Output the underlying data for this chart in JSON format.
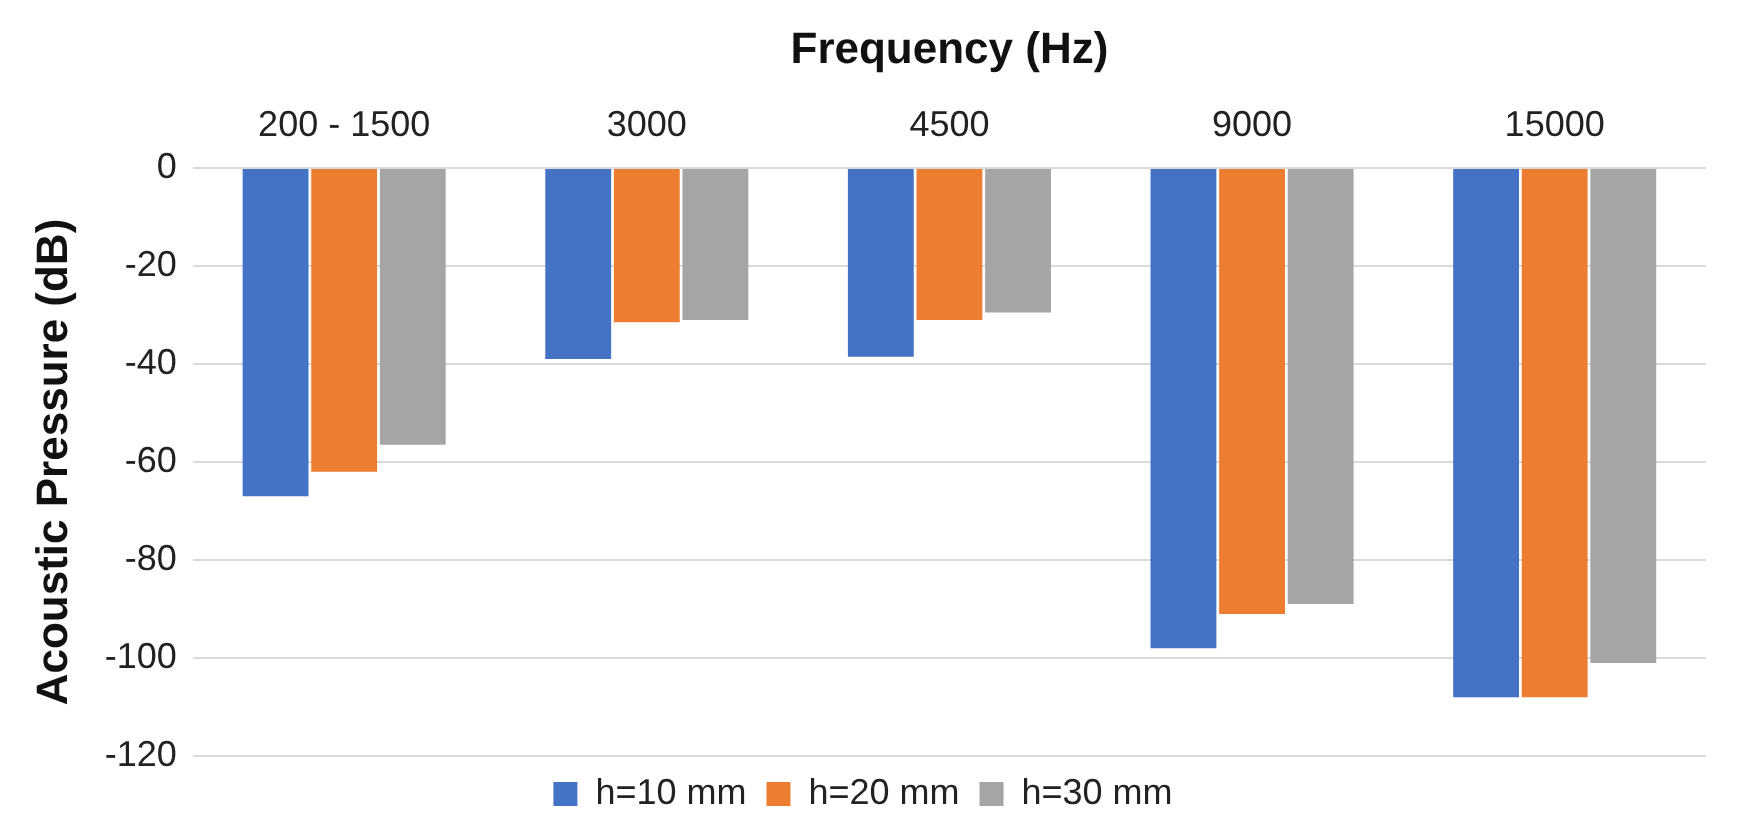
{
  "chart_data": {
    "type": "bar",
    "xlabel": "Frequency (Hz)",
    "ylabel": "Acoustic Pressure (dB)",
    "categories": [
      "200 - 1500",
      "3000",
      "4500",
      "9000",
      "15000"
    ],
    "series": [
      {
        "name": "h=10 mm",
        "color": "#4472c4",
        "values": [
          -67,
          -39,
          -38.5,
          -98,
          -108
        ]
      },
      {
        "name": "h=20 mm",
        "color": "#ed7d31",
        "values": [
          -62,
          -31.5,
          -31,
          -91,
          -108
        ]
      },
      {
        "name": "h=30 mm",
        "color": "#a5a5a5",
        "values": [
          -56.5,
          -31,
          -29.5,
          -89,
          -101
        ]
      }
    ],
    "ylim": [
      -120,
      0
    ],
    "yticks": [
      0,
      -20,
      -40,
      -60,
      -80,
      -100,
      -120
    ],
    "grid": "y",
    "legend": "bottom"
  }
}
